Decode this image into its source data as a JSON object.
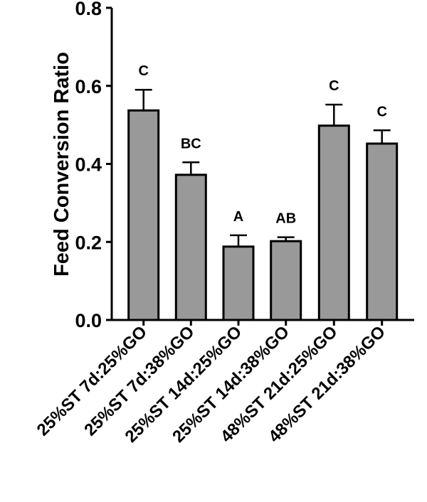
{
  "chart_data": {
    "type": "bar",
    "title": "",
    "xlabel": "",
    "ylabel": "Feed Conversion Ratio",
    "ylim": [
      0,
      0.8
    ],
    "yticks": [
      "0.0",
      "0.2",
      "0.4",
      "0.6",
      "0.8"
    ],
    "grid": false,
    "categories": [
      "25%ST 7d:25%GO",
      "25%ST 7d:38%GO",
      "25%ST 14d:25%GO",
      "25%ST 14d:38%GO",
      "48%ST 21d:25%GO",
      "48%ST 21d:38%GO"
    ],
    "values": [
      0.537,
      0.372,
      0.188,
      0.202,
      0.498,
      0.452
    ],
    "error_upper": [
      0.053,
      0.032,
      0.029,
      0.01,
      0.054,
      0.034
    ],
    "annotations": [
      "C",
      "BC",
      "A",
      "AB",
      "C",
      "C"
    ],
    "bar_color": "#999999",
    "edge_color": "#000000"
  }
}
